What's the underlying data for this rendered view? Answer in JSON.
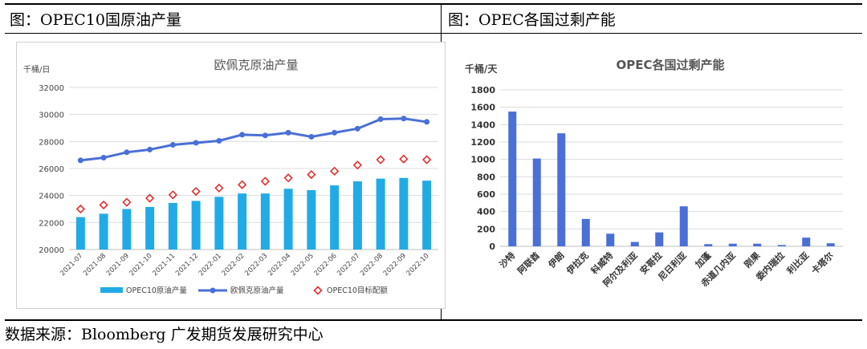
{
  "panels": {
    "left_title": "图：OPEC10国原油产量",
    "right_title": "图：OPEC各国过剩产能"
  },
  "source": "数据来源：Bloomberg   广发期货发展研究中心",
  "chart_data": [
    {
      "type": "bar",
      "title": "欧佩克原油产量",
      "unit_label": "千桶/日",
      "ylim": [
        20000,
        32000
      ],
      "yticks": [
        "20000",
        "22000",
        "24000",
        "26000",
        "28000",
        "30000",
        "32000"
      ],
      "grid": true,
      "legend_position": "bottom",
      "categories": [
        "2021-07",
        "2021-08",
        "2021-09",
        "2021-10",
        "2021-11",
        "2021-12",
        "2022-01",
        "2022-02",
        "2022-03",
        "2022-04",
        "2022-05",
        "2022-06",
        "2022-07",
        "2022-08",
        "2022-09",
        "2022-10"
      ],
      "series": [
        {
          "name": "OPEC10原油产量",
          "kind": "bar",
          "color": "#21ABE6",
          "values": [
            22400,
            22650,
            23000,
            23150,
            23450,
            23600,
            23900,
            24150,
            24150,
            24500,
            24400,
            24750,
            25050,
            25250,
            25300,
            25100
          ]
        },
        {
          "name": "欧佩克原油产量",
          "kind": "line",
          "color": "#4A6FD6",
          "values": [
            26600,
            26800,
            27200,
            27400,
            27750,
            27900,
            28050,
            28500,
            28450,
            28650,
            28350,
            28650,
            28950,
            29650,
            29700,
            29450
          ]
        },
        {
          "name": "OPEC10目标配额",
          "kind": "marker",
          "color": "#E03030",
          "values": [
            23000,
            23300,
            23500,
            23800,
            24050,
            24300,
            24550,
            24800,
            25050,
            25300,
            25550,
            25800,
            26250,
            26650,
            26700,
            26650
          ]
        }
      ]
    },
    {
      "type": "bar",
      "title": "OPEC各国过剩产能",
      "unit_label": "千桶/天",
      "ylim": [
        0,
        1800
      ],
      "yticks": [
        "0",
        "200",
        "400",
        "600",
        "800",
        "1000",
        "1200",
        "1400",
        "1600",
        "1800"
      ],
      "grid": true,
      "categories": [
        "沙特",
        "阿联酋",
        "伊朗",
        "伊拉克",
        "科威特",
        "阿尔及利亚",
        "安哥拉",
        "尼日利亚",
        "加蓬",
        "赤道几内亚",
        "刚果",
        "委内瑞拉",
        "利比亚",
        "卡塔尔"
      ],
      "series": [
        {
          "kind": "bar",
          "color": "#4A6FD6",
          "values": [
            1550,
            1010,
            1300,
            315,
            145,
            50,
            160,
            460,
            25,
            30,
            30,
            15,
            100,
            35
          ]
        }
      ]
    }
  ]
}
